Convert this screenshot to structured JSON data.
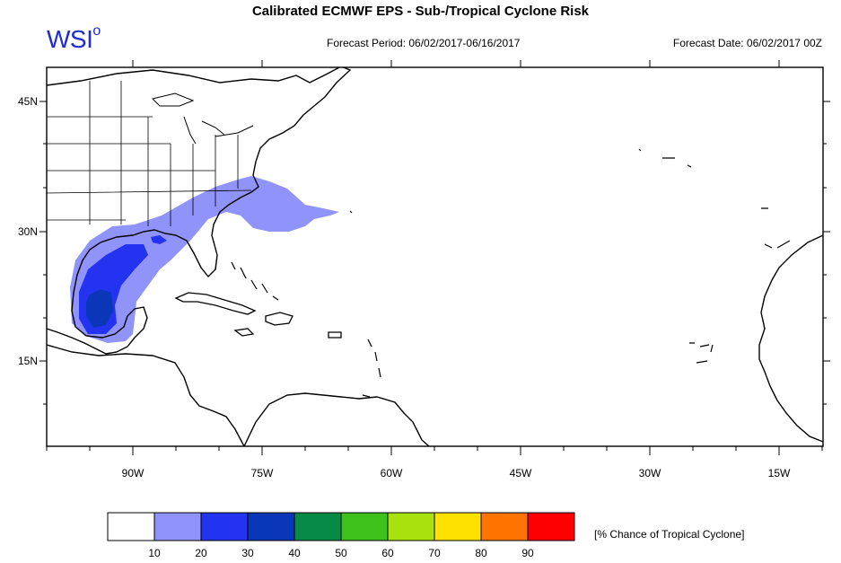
{
  "header": {
    "title": "Calibrated ECMWF EPS - Sub-/Tropical Cyclone Risk",
    "brand": "WSI",
    "brand_degree": "o",
    "forecast_period": "Forecast Period: 06/02/2017-06/16/2017",
    "forecast_date": "Forecast Date: 06/02/2017 00Z"
  },
  "map": {
    "lat_labels": [
      "45N",
      "30N",
      "15N"
    ],
    "lon_labels": [
      "90W",
      "75W",
      "60W",
      "45W",
      "30W",
      "15W"
    ],
    "risk_colors": [
      "#8f93fa",
      "#2333f0",
      "#0a36b8"
    ]
  },
  "legend": {
    "colors": [
      "#ffffff",
      "#8f93fa",
      "#2333f0",
      "#0a36b8",
      "#078a48",
      "#3cc21a",
      "#a8e10e",
      "#ffe100",
      "#ff7300",
      "#ff0000"
    ],
    "ticks": [
      "10",
      "20",
      "30",
      "40",
      "50",
      "60",
      "70",
      "80",
      "90"
    ],
    "label": "[% Chance of Tropical Cyclone]"
  }
}
